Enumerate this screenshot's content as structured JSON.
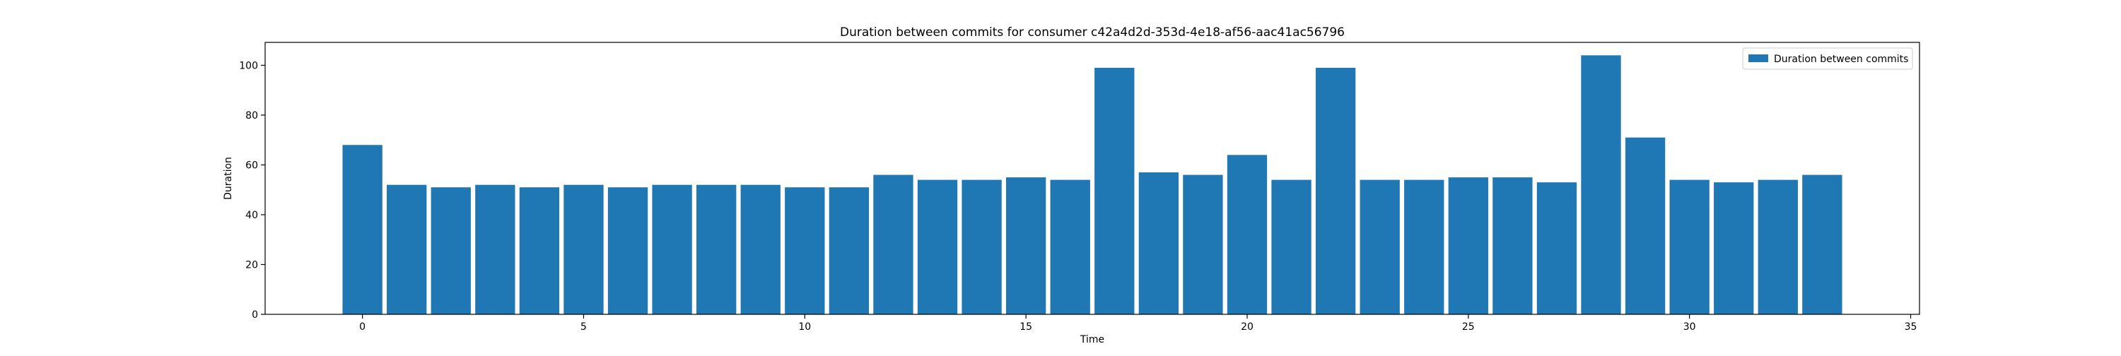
{
  "chart_data": {
    "type": "bar",
    "title": "Duration between commits for consumer c42a4d2d-353d-4e18-af56-aac41ac56796",
    "xlabel": "Time",
    "ylabel": "Duration",
    "x": [
      0,
      1,
      2,
      3,
      4,
      5,
      6,
      7,
      8,
      9,
      10,
      11,
      12,
      13,
      14,
      15,
      16,
      17,
      18,
      19,
      20,
      21,
      22,
      23,
      24,
      25,
      26,
      27,
      28,
      29,
      30,
      31,
      32,
      33
    ],
    "series": [
      {
        "name": "Duration between commits",
        "color": "#1f77b4",
        "values": [
          68,
          52,
          51,
          52,
          51,
          52,
          51,
          52,
          52,
          52,
          51,
          51,
          56,
          54,
          54,
          55,
          54,
          99,
          57,
          56,
          64,
          54,
          99,
          54,
          54,
          55,
          55,
          53,
          104,
          71,
          54,
          53,
          54,
          56
        ]
      }
    ],
    "xlim": [
      -2.2,
      35.2
    ],
    "ylim": [
      0,
      109.2
    ],
    "xticks": [
      0,
      5,
      10,
      15,
      20,
      25,
      30,
      35
    ],
    "yticks": [
      0,
      20,
      40,
      60,
      80,
      100
    ],
    "bar_width": 0.9,
    "legend_position": "top-right",
    "grid": false
  }
}
